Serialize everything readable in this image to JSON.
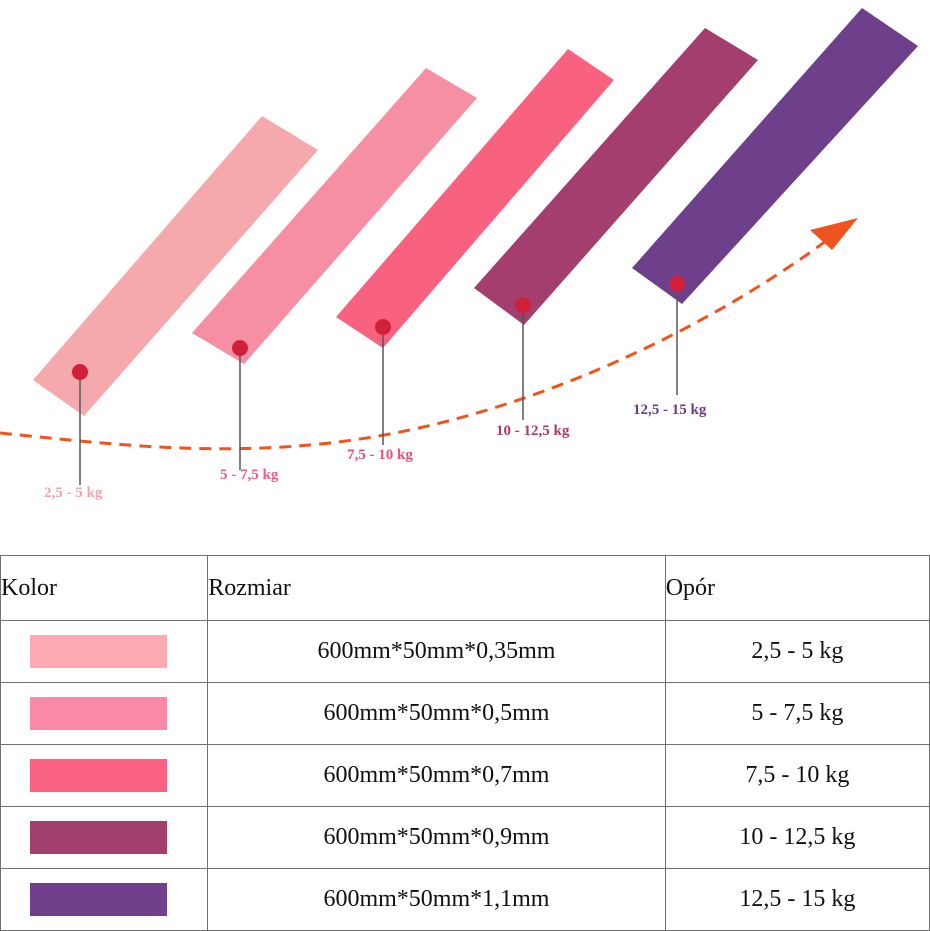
{
  "bands": [
    {
      "label": "2,5 - 5 kg",
      "color": "#f6a9ad",
      "label_color": "#f6a3a8",
      "dot_color": "#d0203c"
    },
    {
      "label": "5 - 7,5 kg",
      "color": "#f68ea4",
      "label_color": "#ee5c86",
      "dot_color": "#d0203c"
    },
    {
      "label": "7,5 - 10 kg",
      "color": "#f9627e",
      "label_color": "#e8507a",
      "dot_color": "#d0203c"
    },
    {
      "label": "10 - 12,5 kg",
      "color": "#a33e6e",
      "label_color": "#a83a6c",
      "dot_color": "#d0203c"
    },
    {
      "label": "12,5 - 15 kg",
      "color": "#6e3f8a",
      "label_color": "#6b3b86",
      "dot_color": "#d0203c"
    }
  ],
  "arrow_color": "#f0541e",
  "table": {
    "headers": {
      "color": "Kolor",
      "size": "Rozmiar",
      "resistance": "Opór"
    },
    "rows": [
      {
        "swatch": "#fbaab1",
        "size": "600mm*50mm*0,35mm",
        "resistance": "2,5 - 5 kg"
      },
      {
        "swatch": "#f989a4",
        "size": "600mm*50mm*0,5mm",
        "resistance": "5 - 7,5 kg"
      },
      {
        "swatch": "#fb6384",
        "size": "600mm*50mm*0,7mm",
        "resistance": "7,5 - 10 kg"
      },
      {
        "swatch": "#a23f6d",
        "size": "600mm*50mm*0,9mm",
        "resistance": "10 - 12,5 kg"
      },
      {
        "swatch": "#6f3f8c",
        "size": "600mm*50mm*1,1mm",
        "resistance": "12,5 - 15 kg"
      }
    ]
  }
}
